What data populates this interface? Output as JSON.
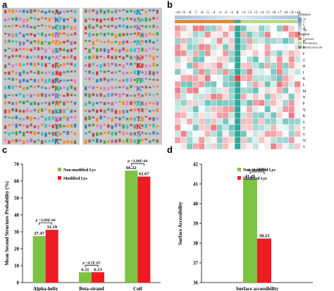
{
  "panels": {
    "a": "a",
    "b": "b",
    "c": "c",
    "d": "d"
  },
  "colors": {
    "non_modified": "#7dc242",
    "modified": "#ed1c24",
    "logo_bg": "#c9c9c9",
    "heat_high": "#e0303a",
    "heat_mid": "#ffffff",
    "heat_low": "#1a9e8f",
    "upstream": "#e08a3c",
    "downstream": "#bcd98a",
    "modsite": "#4aa89a"
  },
  "motif_panel": {
    "left_logo_letters": [
      "A",
      "K",
      "C",
      "R",
      "E",
      "K",
      "A",
      "K",
      "S",
      "K",
      "K",
      "R",
      "H",
      "K",
      "K",
      "Y",
      "C",
      "K"
    ],
    "right_logo_letters": [
      "K",
      "S",
      "K",
      "N",
      "K",
      "T",
      "K",
      "K",
      "F",
      "H",
      "K",
      "S",
      "R",
      "V",
      "T",
      "K",
      "S",
      "P"
    ]
  },
  "heatmap": {
    "positions": [
      "-10",
      "-9",
      "-8",
      "-7",
      "-6",
      "-5",
      "-4",
      "-3",
      "-2",
      "-1",
      "K",
      "+1",
      "+2",
      "+3",
      "+4",
      "+5",
      "+6",
      "+7",
      "+8",
      "+9",
      "+10"
    ],
    "amino_acids": [
      "A",
      "C",
      "D",
      "E",
      "F",
      "G",
      "H",
      "I",
      "K",
      "L",
      "M",
      "N",
      "P",
      "Q",
      "R",
      "S",
      "T",
      "V",
      "W",
      "Y"
    ],
    "legend": {
      "distance_title": "Distance",
      "distance_ticks": [
        "10",
        "5",
        "0",
        "-5",
        "-10"
      ],
      "position_title": "Position",
      "position_items": [
        "Upstream",
        "Downstream",
        "Modification site"
      ]
    }
  },
  "chart_data": [
    {
      "type": "bar",
      "categories": [
        "Alpha-helix",
        "Beta-strand",
        "Coil"
      ],
      "series": [
        {
          "name": "Non-modified Lys",
          "values": [
            27.47,
            6.11,
            66.22
          ]
        },
        {
          "name": "Modified Lys",
          "values": [
            31.19,
            6.13,
            62.67
          ]
        }
      ],
      "ylabel": "Mean Second Structure Probability (%)",
      "ylim": [
        0,
        70
      ],
      "yticks": [
        "0",
        "10",
        "20",
        "30",
        "40",
        "50",
        "60",
        "70"
      ],
      "value_labels": {
        "series0": [
          "27.47",
          "6.11",
          "66.22"
        ],
        "series1": [
          "31.19",
          "6.13",
          "62.67"
        ]
      },
      "pvalues": [
        "p =3.89E-04",
        "p =4.5E-01",
        "p =3.98E-04"
      ],
      "legend": "top-center"
    },
    {
      "type": "bar",
      "categories": [
        "Surface accessibility"
      ],
      "series": [
        {
          "name": "Non-modified Lys",
          "values": [
            41.25
          ]
        },
        {
          "name": "Modified Lys",
          "values": [
            38.23
          ]
        }
      ],
      "ylabel": "Surface Accessibility",
      "ylim": [
        36,
        42
      ],
      "yticks": [
        "36",
        "37",
        "38",
        "39",
        "40",
        "41",
        "42"
      ],
      "value_labels": {
        "series0": [
          "41.25"
        ],
        "series1": [
          "38.23"
        ]
      },
      "pvalues": [
        "p =1.1E-03"
      ],
      "legend": "top-center"
    }
  ]
}
